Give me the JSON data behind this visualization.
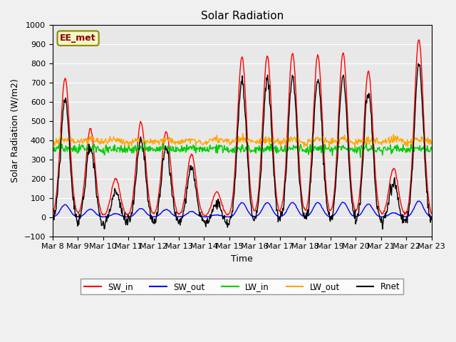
{
  "title": "Solar Radiation",
  "xlabel": "Time",
  "ylabel": "Solar Radiation (W/m2)",
  "ylim": [
    -100,
    1000
  ],
  "annotation": "EE_met",
  "legend": [
    "SW_in",
    "SW_out",
    "LW_in",
    "LW_out",
    "Rnet"
  ],
  "colors": {
    "SW_in": "#ff0000",
    "SW_out": "#0000ff",
    "LW_in": "#00cc00",
    "LW_out": "#ffa500",
    "Rnet": "#000000"
  },
  "xtick_labels": [
    "Mar 8",
    "Mar 9",
    "Mar 10",
    "Mar 11",
    "Mar 12",
    "Mar 13",
    "Mar 14",
    "Mar 15",
    "Mar 16",
    "Mar 17",
    "Mar 18",
    "Mar 19",
    "Mar 20",
    "Mar 21",
    "Mar 22",
    "Mar 23"
  ],
  "background_color": "#e8e8e8",
  "grid_color": "#ffffff",
  "n_days": 15,
  "n_points_per_day": 48
}
